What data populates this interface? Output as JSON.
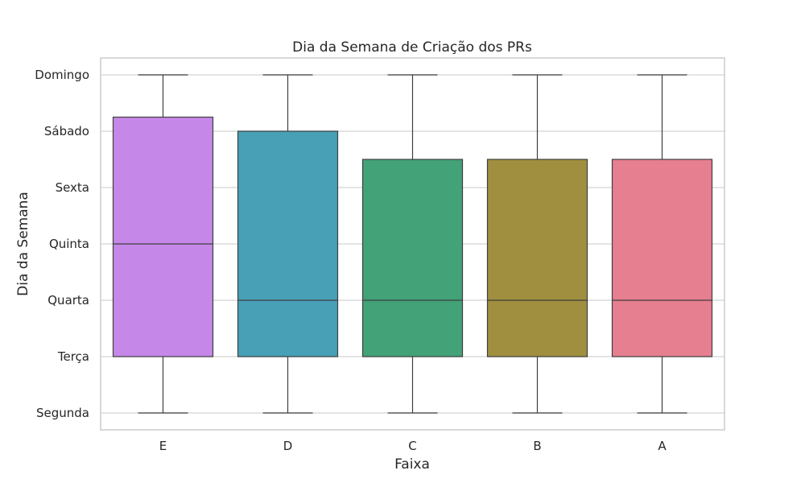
{
  "chart_data": {
    "type": "box",
    "title": "Dia da Semana de Criação dos PRs",
    "xlabel": "Faixa",
    "ylabel": "Dia da Semana",
    "y_ticks": [
      "Segunda",
      "Terça",
      "Quarta",
      "Quinta",
      "Sexta",
      "Sábado",
      "Domingo"
    ],
    "ylim": [
      -0.3,
      6.3
    ],
    "grid": "horizontal",
    "categories": [
      "E",
      "D",
      "C",
      "B",
      "A"
    ],
    "boxes": [
      {
        "category": "E",
        "whisker_low": 0,
        "q1": 1,
        "median": 3,
        "q3": 5.25,
        "whisker_high": 6,
        "color": "#c688e8"
      },
      {
        "category": "D",
        "whisker_low": 0,
        "q1": 1,
        "median": 2,
        "q3": 5,
        "whisker_high": 6,
        "color": "#47a0b6"
      },
      {
        "category": "C",
        "whisker_low": 0,
        "q1": 1,
        "median": 2,
        "q3": 4.5,
        "whisker_high": 6,
        "color": "#43a278"
      },
      {
        "category": "B",
        "whisker_low": 0,
        "q1": 1,
        "median": 2,
        "q3": 4.5,
        "whisker_high": 6,
        "color": "#a08f3f"
      },
      {
        "category": "A",
        "whisker_low": 0,
        "q1": 1,
        "median": 2,
        "q3": 4.5,
        "whisker_high": 6,
        "color": "#e67f90"
      }
    ],
    "colors": {
      "grid": "#d3d3d3",
      "frame": "#cccccc",
      "lines": "#3f3f3f",
      "text": "#262626"
    }
  }
}
